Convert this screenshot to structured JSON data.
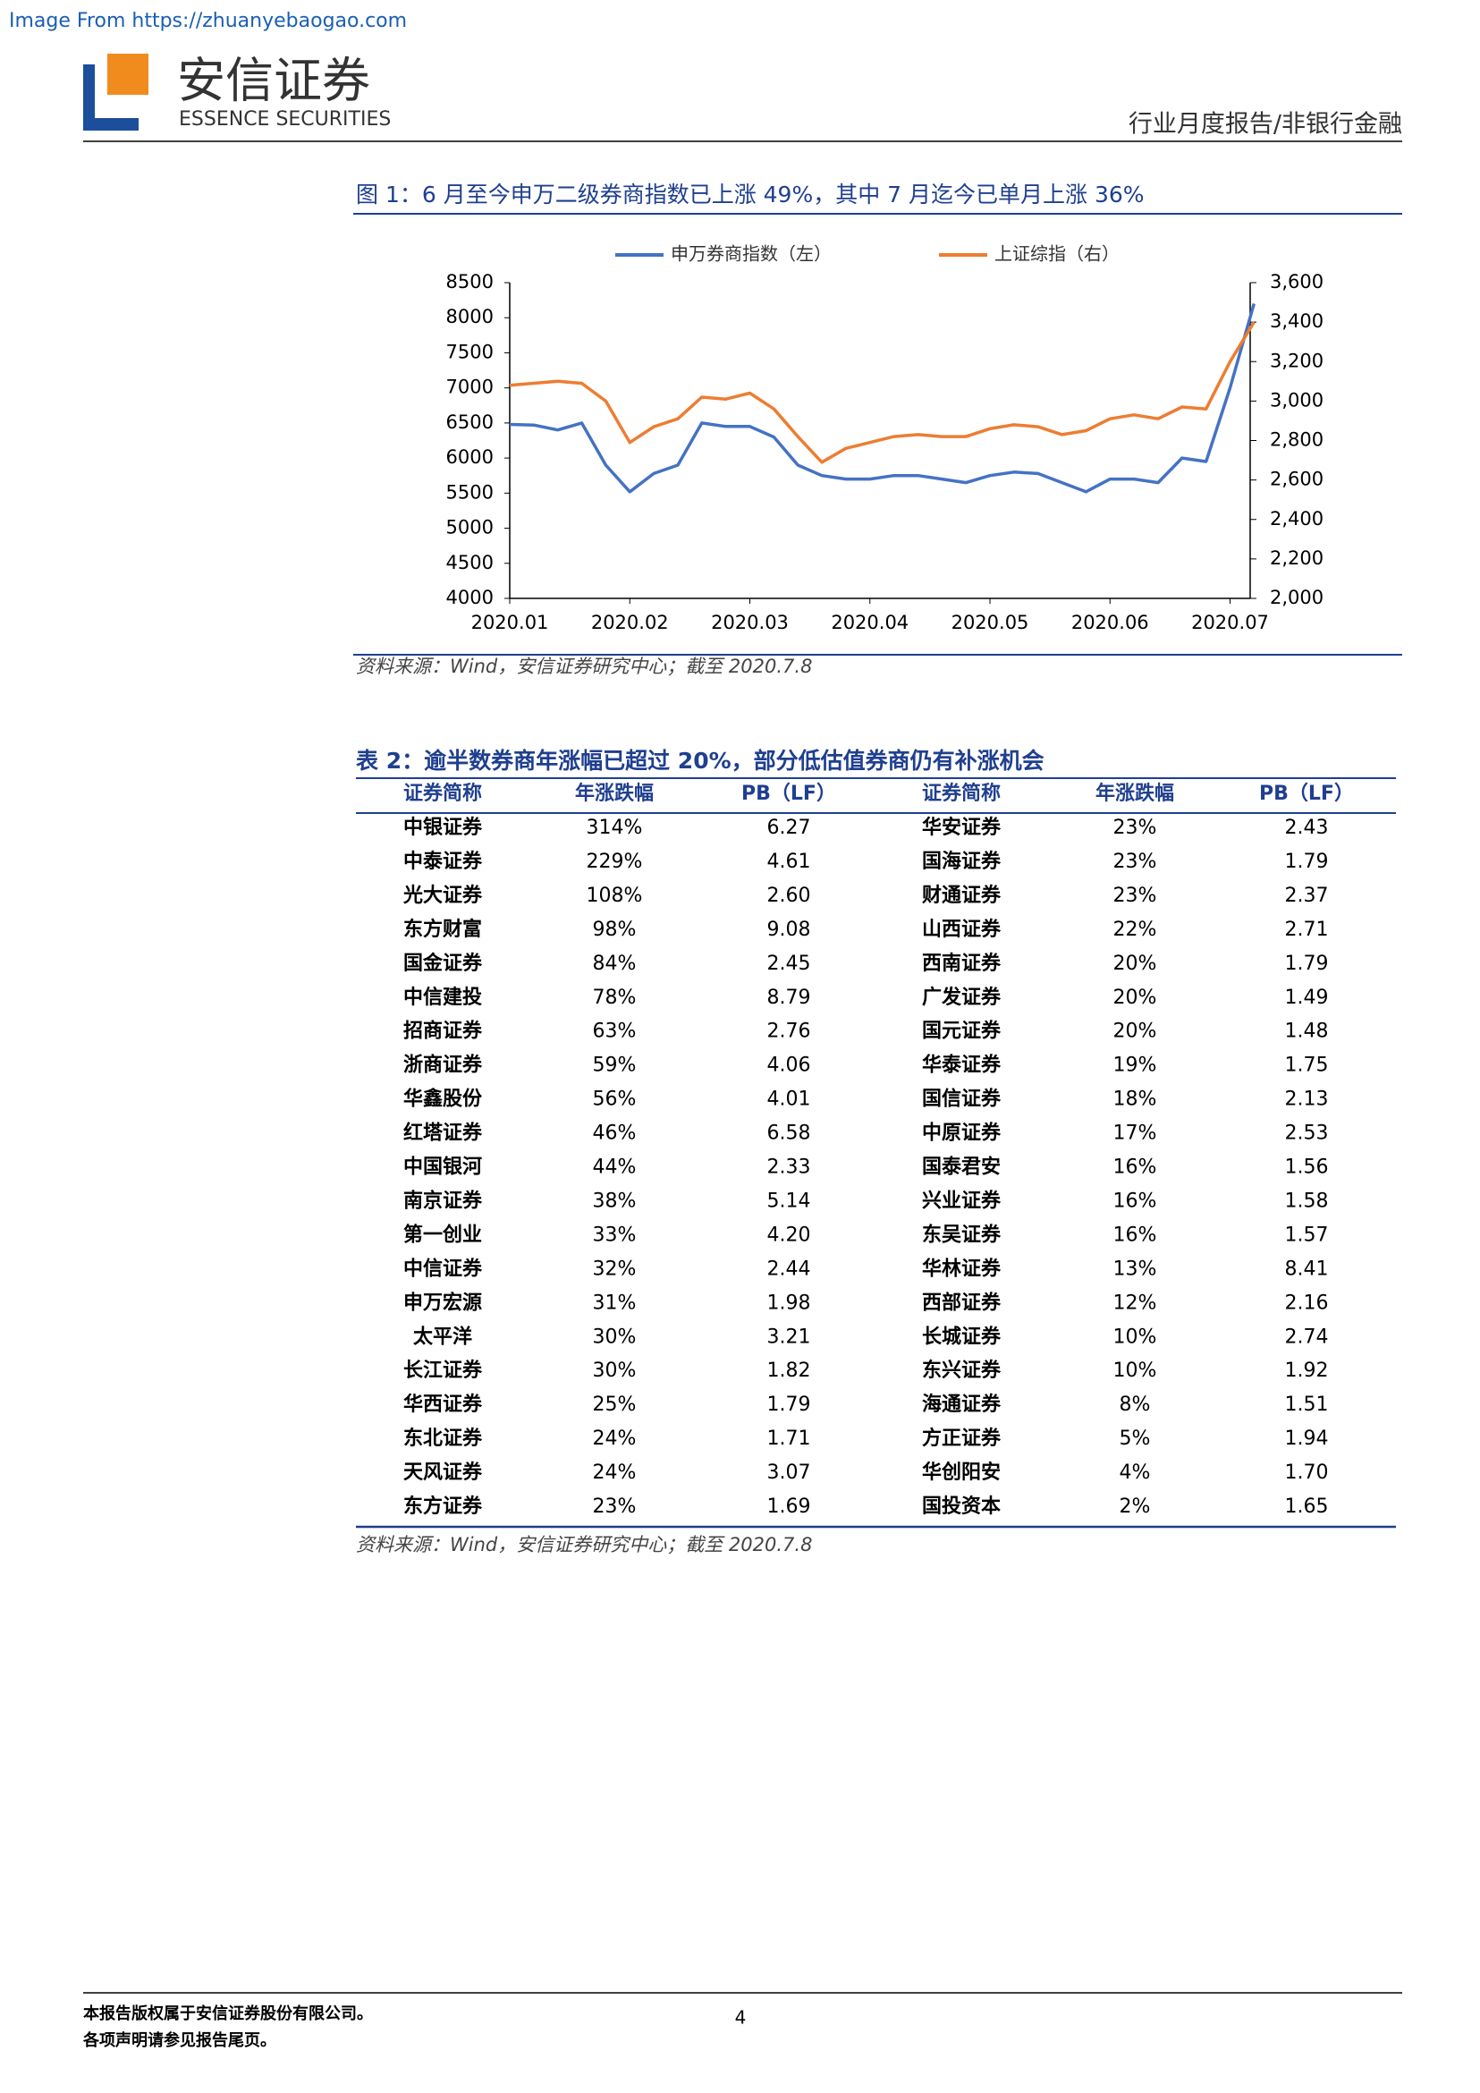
{
  "header": {
    "watermark": "Image From https://zhuanyebaogao.com",
    "logo_cn": "安信证券",
    "logo_en": "ESSENCE SECURITIES",
    "report_type": "行业月度报告/非银行金融"
  },
  "figure": {
    "caption": "图 1：6 月至今申万二级券商指数已上涨 49%，其中 7 月迄今已单月上涨 36%",
    "source": "资料来源：Wind，安信证券研究中心；截至 2020.7.8"
  },
  "chart_data": {
    "type": "line",
    "categories": [
      "2020.01",
      null,
      null,
      null,
      null,
      "2020.02",
      null,
      null,
      null,
      null,
      "2020.03",
      null,
      null,
      null,
      null,
      "2020.04",
      null,
      null,
      null,
      null,
      "2020.05",
      null,
      null,
      null,
      null,
      "2020.06",
      null,
      null,
      null,
      null,
      "2020.07",
      null
    ],
    "series": [
      {
        "name": "申万券商指数（左）",
        "color": "#4472c4",
        "values": [
          6480,
          6470,
          6400,
          6500,
          5900,
          5520,
          5780,
          5900,
          6500,
          6450,
          6450,
          6300,
          5900,
          5750,
          5700,
          5700,
          5750,
          5750,
          5700,
          5650,
          5750,
          5800,
          5780,
          5650,
          5520,
          5700,
          5700,
          5650,
          6000,
          5950,
          7000,
          8200
        ]
      },
      {
        "name": "上证综指（右）",
        "color": "#ed7d31",
        "axis": "y2",
        "values": [
          3080,
          3090,
          3100,
          3090,
          3000,
          2790,
          2870,
          2910,
          3020,
          3010,
          3040,
          2960,
          2820,
          2690,
          2760,
          2790,
          2820,
          2830,
          2820,
          2820,
          2860,
          2880,
          2870,
          2830,
          2850,
          2910,
          2930,
          2910,
          2970,
          2960,
          3200,
          3400
        ]
      }
    ],
    "ylim": [
      4000,
      8500
    ],
    "yticks": [
      4000,
      4500,
      5000,
      5500,
      6000,
      6500,
      7000,
      7500,
      8000,
      8500
    ],
    "y2lim": [
      2000,
      3600
    ],
    "y2ticks": [
      {
        "value": 2000,
        "label": "2,000"
      },
      {
        "value": 2200,
        "label": "2,200"
      },
      {
        "value": 2400,
        "label": "2,400"
      },
      {
        "value": 2600,
        "label": "2,600"
      },
      {
        "value": 2800,
        "label": "2,800"
      },
      {
        "value": 3000,
        "label": "3,000"
      },
      {
        "value": 3200,
        "label": "3,200"
      },
      {
        "value": 3400,
        "label": "3,400"
      },
      {
        "value": 3600,
        "label": "3,600"
      }
    ],
    "legend": "top"
  },
  "table": {
    "caption": "表 2：逾半数券商年涨幅已超过 20%，部分低估值券商仍有补涨机会",
    "columns": [
      "证券简称",
      "年涨跌幅",
      "PB（LF）",
      "证券简称",
      "年涨跌幅",
      "PB（LF）"
    ],
    "rows": [
      [
        "中银证券",
        "314%",
        "6.27",
        "华安证券",
        "23%",
        "2.43"
      ],
      [
        "中泰证券",
        "229%",
        "4.61",
        "国海证券",
        "23%",
        "1.79"
      ],
      [
        "光大证券",
        "108%",
        "2.60",
        "财通证券",
        "23%",
        "2.37"
      ],
      [
        "东方财富",
        "98%",
        "9.08",
        "山西证券",
        "22%",
        "2.71"
      ],
      [
        "国金证券",
        "84%",
        "2.45",
        "西南证券",
        "20%",
        "1.79"
      ],
      [
        "中信建投",
        "78%",
        "8.79",
        "广发证券",
        "20%",
        "1.49"
      ],
      [
        "招商证券",
        "63%",
        "2.76",
        "国元证券",
        "20%",
        "1.48"
      ],
      [
        "浙商证券",
        "59%",
        "4.06",
        "华泰证券",
        "19%",
        "1.75"
      ],
      [
        "华鑫股份",
        "56%",
        "4.01",
        "国信证券",
        "18%",
        "2.13"
      ],
      [
        "红塔证券",
        "46%",
        "6.58",
        "中原证券",
        "17%",
        "2.53"
      ],
      [
        "中国银河",
        "44%",
        "2.33",
        "国泰君安",
        "16%",
        "1.56"
      ],
      [
        "南京证券",
        "38%",
        "5.14",
        "兴业证券",
        "16%",
        "1.58"
      ],
      [
        "第一创业",
        "33%",
        "4.20",
        "东吴证券",
        "16%",
        "1.57"
      ],
      [
        "中信证券",
        "32%",
        "2.44",
        "华林证券",
        "13%",
        "8.41"
      ],
      [
        "申万宏源",
        "31%",
        "1.98",
        "西部证券",
        "12%",
        "2.16"
      ],
      [
        "太平洋",
        "30%",
        "3.21",
        "长城证券",
        "10%",
        "2.74"
      ],
      [
        "长江证券",
        "30%",
        "1.82",
        "东兴证券",
        "10%",
        "1.92"
      ],
      [
        "华西证券",
        "25%",
        "1.79",
        "海通证券",
        "8%",
        "1.51"
      ],
      [
        "东北证券",
        "24%",
        "1.71",
        "方正证券",
        "5%",
        "1.94"
      ],
      [
        "天风证券",
        "24%",
        "3.07",
        "华创阳安",
        "4%",
        "1.70"
      ],
      [
        "东方证券",
        "23%",
        "1.69",
        "国投资本",
        "2%",
        "1.65"
      ]
    ],
    "source": "资料来源：Wind，安信证券研究中心；截至 2020.7.8"
  },
  "footer": {
    "copyright": "本报告版权属于安信证券股份有限公司。",
    "disclaimer": "各项声明请参见报告尾页。",
    "page": "4"
  }
}
